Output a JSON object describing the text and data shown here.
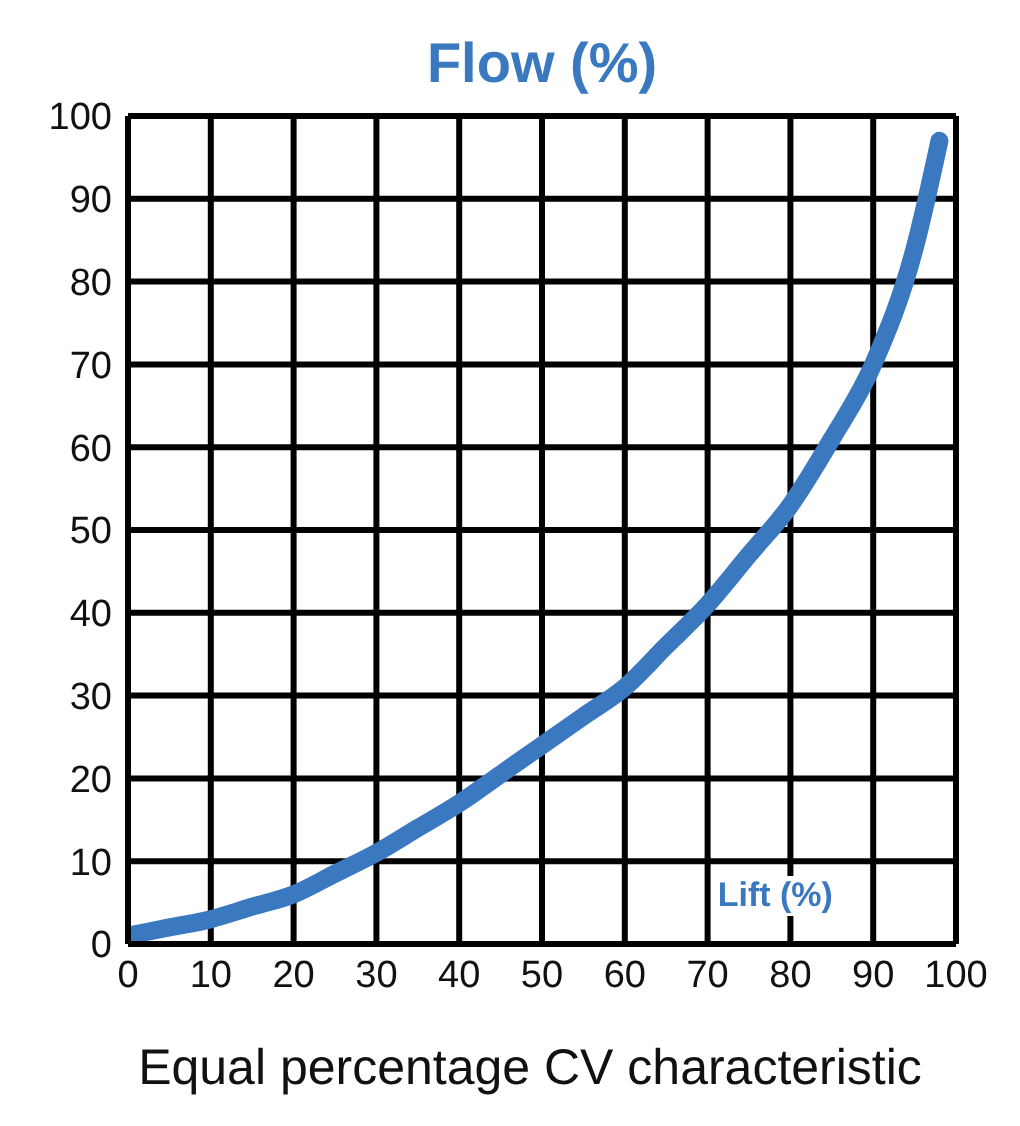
{
  "chart_data": {
    "type": "line",
    "title": "Equal percentage CV characteristic",
    "ylabel": "Flow (%)",
    "xlabel": "Lift (%)",
    "series": [
      {
        "color": "#3a78c0",
        "x": [
          0,
          5,
          10,
          15,
          20,
          25,
          30,
          35,
          40,
          45,
          50,
          55,
          60,
          65,
          70,
          75,
          80,
          85,
          90,
          95,
          98
        ],
        "values": [
          1,
          2,
          3,
          4.5,
          6,
          8.5,
          11,
          14,
          17,
          20.5,
          24,
          27.5,
          31,
          36,
          41,
          47,
          53,
          61,
          70,
          84,
          97
        ]
      }
    ],
    "xlim": [
      0,
      100
    ],
    "ylim": [
      0,
      100
    ],
    "xticks": [
      0,
      10,
      20,
      30,
      40,
      50,
      60,
      70,
      80,
      90,
      100
    ],
    "yticks": [
      0,
      10,
      20,
      30,
      40,
      50,
      60,
      70,
      80,
      90,
      100
    ],
    "grid": true,
    "marker": "none",
    "line_style": "solid"
  }
}
